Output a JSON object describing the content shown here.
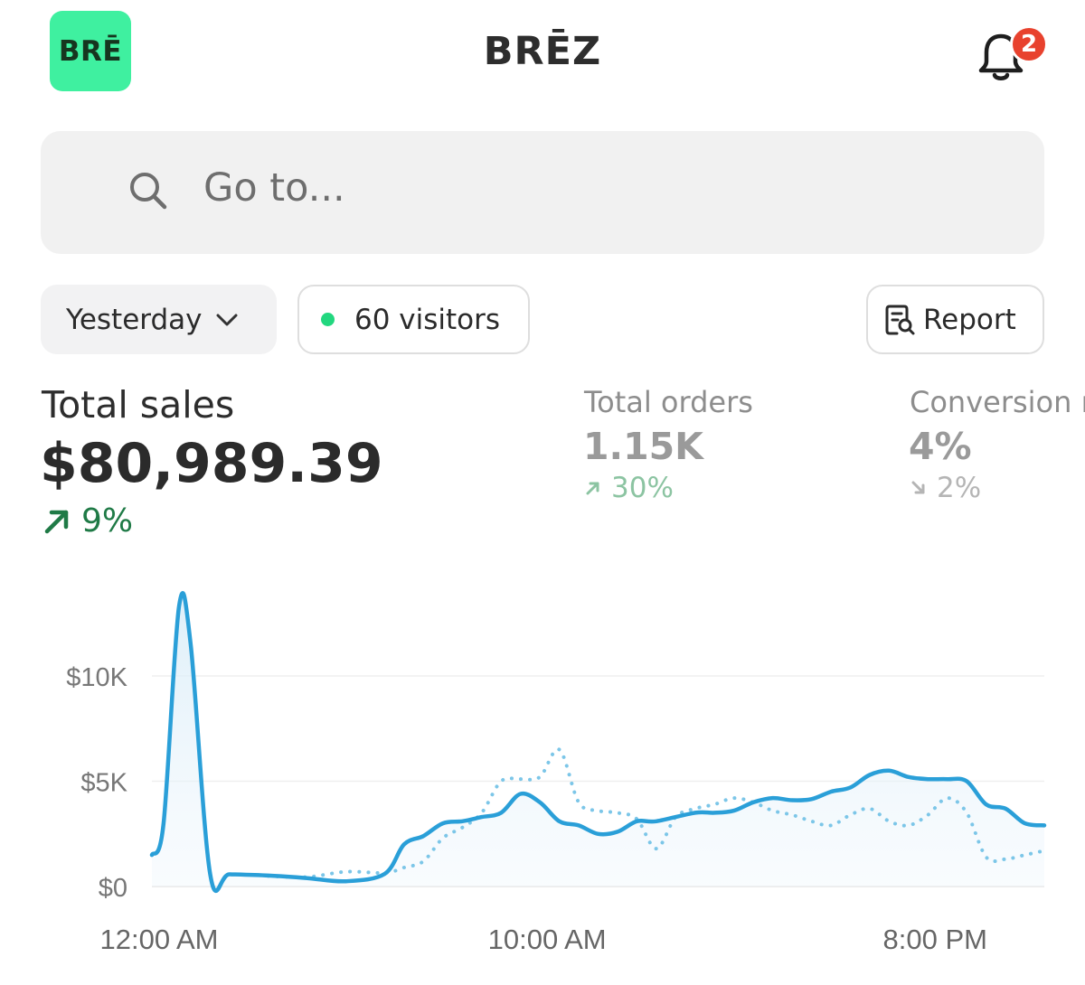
{
  "header": {
    "logo_text": "BRĒ",
    "title": "BRĒZ",
    "notification_count": "2",
    "accent": "#3ff0a0",
    "badge_color": "#e8422e"
  },
  "search": {
    "placeholder": "Go to..."
  },
  "filters": {
    "period_label": "Yesterday",
    "visitors_label": "60 visitors",
    "visitors_dot_color": "#22d77f",
    "report_label": "Report"
  },
  "metrics": {
    "total_sales": {
      "label": "Total sales",
      "value": "$80,989.39",
      "change": "9%",
      "direction": "up",
      "color": "#1f7a46"
    },
    "total_orders": {
      "label": "Total orders",
      "value": "1.15K",
      "change": "30%",
      "direction": "up",
      "color": "#8cc4a2"
    },
    "conversion": {
      "label": "Conversion r",
      "value": "4%",
      "change": "2%",
      "direction": "down",
      "color": "#b5b5b5"
    }
  },
  "chart_data": {
    "type": "line",
    "x_range": [
      0,
      23
    ],
    "ylim": [
      0,
      14000
    ],
    "yticks": [
      "$0",
      "$5K",
      "$10K"
    ],
    "ytick_values": [
      0,
      5000,
      10000
    ],
    "xticks": [
      "12:00 AM",
      "10:00 AM",
      "8:00 PM"
    ],
    "xtick_values": [
      0,
      10,
      20
    ],
    "series": [
      {
        "style": "solid",
        "color": "#2a9fd8",
        "x": [
          0,
          0.3,
          0.7,
          1.0,
          1.5,
          2.0,
          3,
          4,
          5,
          6,
          6.5,
          7,
          7.5,
          8,
          8.5,
          9,
          9.5,
          10,
          10.5,
          11,
          11.5,
          12,
          12.5,
          13,
          14,
          14.5,
          15,
          15.5,
          16,
          16.5,
          17,
          17.5,
          18,
          18.5,
          19,
          19.5,
          20,
          20.5,
          21,
          21.5,
          22,
          22.5,
          23
        ],
        "values": [
          1500,
          3000,
          13300,
          11500,
          600,
          580,
          520,
          400,
          250,
          600,
          2000,
          2400,
          3000,
          3100,
          3300,
          3500,
          4400,
          4000,
          3100,
          2900,
          2500,
          2600,
          3100,
          3100,
          3500,
          3500,
          3600,
          4000,
          4200,
          4100,
          4150,
          4500,
          4700,
          5300,
          5500,
          5200,
          5100,
          5100,
          5000,
          3900,
          3700,
          3000,
          2900
        ]
      },
      {
        "style": "dotted",
        "color": "#7cc6e8",
        "x": [
          3,
          4,
          5,
          6,
          6.5,
          7,
          7.5,
          8,
          8.5,
          9,
          9.5,
          10,
          10.5,
          11,
          11.5,
          12,
          12.5,
          13,
          13.5,
          14,
          14.5,
          15,
          15.5,
          16,
          16.5,
          17,
          17.5,
          18,
          18.5,
          19,
          19.5,
          20,
          20.5,
          21,
          21.5,
          22,
          22.5,
          23
        ],
        "values": [
          500,
          450,
          700,
          650,
          900,
          1200,
          2300,
          2800,
          3500,
          5000,
          5100,
          5200,
          6500,
          4000,
          3600,
          3500,
          3200,
          1800,
          3300,
          3700,
          3900,
          4200,
          4000,
          3600,
          3400,
          3100,
          2900,
          3400,
          3700,
          3100,
          2900,
          3400,
          4200,
          3500,
          1400,
          1300,
          1500,
          1700
        ]
      }
    ]
  }
}
